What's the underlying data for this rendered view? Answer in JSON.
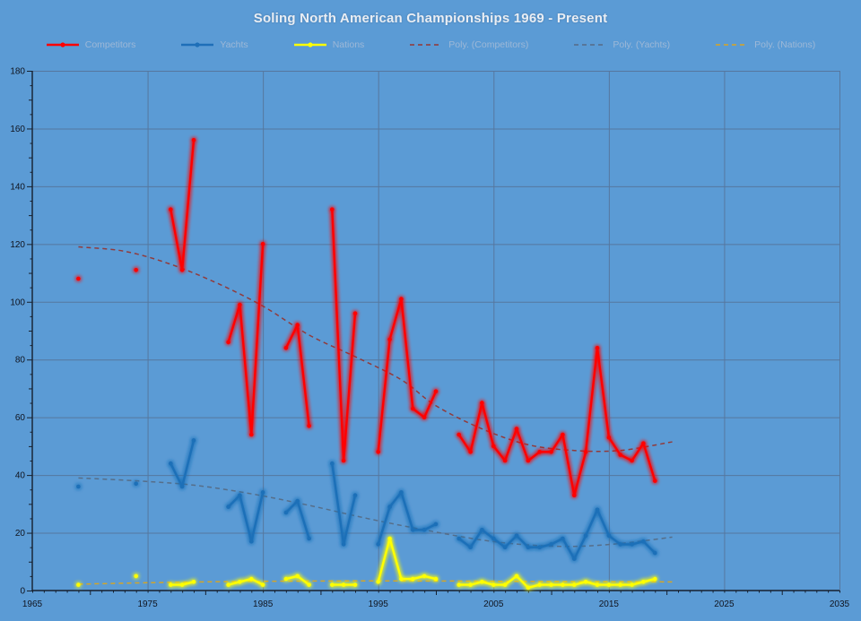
{
  "title": "Soling North American Championships 1969 - Present",
  "colors": {
    "background": "#5b9bd5",
    "gridline": "#56779e",
    "axis": "#16202e",
    "tick_label": "#10141f",
    "title_text": "#e9eef4",
    "legend_text": "#9db8d7",
    "competitors": "#ff0000",
    "yachts": "#1e6fb8",
    "nations": "#ffff00",
    "poly_competitors": "#943634",
    "poly_yachts": "#566b85",
    "poly_nations": "#d9a520"
  },
  "legend": {
    "items": [
      {
        "label": "Competitors",
        "style": "solid",
        "color": "#ff0000"
      },
      {
        "label": "Yachts",
        "style": "solid",
        "color": "#1e6fb8"
      },
      {
        "label": "Nations",
        "style": "solid",
        "color": "#ffff00"
      },
      {
        "label": "Poly. (Competitors)",
        "style": "dashed",
        "color": "#943634"
      },
      {
        "label": "Poly. (Yachts)",
        "style": "dashed",
        "color": "#566b85"
      },
      {
        "label": "Poly. (Nations)",
        "style": "dashed",
        "color": "#d9a520"
      }
    ]
  },
  "chart_data": {
    "type": "line",
    "title": "Soling North American Championships 1969 - Present",
    "xlabel": "",
    "ylabel": "",
    "x_axis": {
      "min": 1965,
      "max": 2035,
      "tick_step": 10,
      "minor_step": 1
    },
    "y_axis": {
      "min": 0,
      "max": 180,
      "tick_step": 20,
      "minor_step": 5
    },
    "grid": true,
    "legend_position": "top",
    "note_gap_years": [
      1970,
      1971,
      1972,
      1973,
      1975,
      1976,
      1980,
      1981,
      1986,
      1990,
      1994,
      2001
    ],
    "series": [
      {
        "name": "Competitors",
        "color": "#ff0000",
        "points": [
          [
            1969,
            108
          ],
          [
            1974,
            111
          ],
          [
            1977,
            132
          ],
          [
            1978,
            111
          ],
          [
            1979,
            156
          ],
          [
            1982,
            86
          ],
          [
            1983,
            99
          ],
          [
            1984,
            54
          ],
          [
            1985,
            120
          ],
          [
            1987,
            84
          ],
          [
            1988,
            92
          ],
          [
            1989,
            57
          ],
          [
            1991,
            132
          ],
          [
            1992,
            45
          ],
          [
            1993,
            96
          ],
          [
            1995,
            48
          ],
          [
            1996,
            87
          ],
          [
            1997,
            101
          ],
          [
            1998,
            63
          ],
          [
            1999,
            60
          ],
          [
            2000,
            69
          ],
          [
            2002,
            54
          ],
          [
            2003,
            48
          ],
          [
            2004,
            65
          ],
          [
            2005,
            50
          ],
          [
            2006,
            45
          ],
          [
            2007,
            56
          ],
          [
            2008,
            45
          ],
          [
            2009,
            48
          ],
          [
            2010,
            48
          ],
          [
            2011,
            54
          ],
          [
            2012,
            33
          ],
          [
            2013,
            48
          ],
          [
            2014,
            84
          ],
          [
            2015,
            53
          ],
          [
            2016,
            47
          ],
          [
            2017,
            45
          ],
          [
            2018,
            51
          ],
          [
            2019,
            38
          ]
        ]
      },
      {
        "name": "Yachts",
        "color": "#1e6fb8",
        "points": [
          [
            1969,
            36
          ],
          [
            1974,
            37
          ],
          [
            1977,
            44
          ],
          [
            1978,
            36
          ],
          [
            1979,
            52
          ],
          [
            1982,
            29
          ],
          [
            1983,
            33
          ],
          [
            1984,
            17
          ],
          [
            1985,
            34
          ],
          [
            1987,
            27
          ],
          [
            1988,
            31
          ],
          [
            1989,
            18
          ],
          [
            1991,
            44
          ],
          [
            1992,
            16
          ],
          [
            1993,
            33
          ],
          [
            1995,
            16
          ],
          [
            1996,
            29
          ],
          [
            1997,
            34
          ],
          [
            1998,
            21
          ],
          [
            1999,
            21
          ],
          [
            2000,
            23
          ],
          [
            2002,
            18
          ],
          [
            2003,
            15
          ],
          [
            2004,
            21
          ],
          [
            2005,
            18
          ],
          [
            2006,
            15
          ],
          [
            2007,
            19
          ],
          [
            2008,
            15
          ],
          [
            2009,
            15
          ],
          [
            2010,
            16
          ],
          [
            2011,
            18
          ],
          [
            2012,
            11
          ],
          [
            2013,
            19
          ],
          [
            2014,
            28
          ],
          [
            2015,
            19
          ],
          [
            2016,
            16
          ],
          [
            2017,
            16
          ],
          [
            2018,
            17
          ],
          [
            2019,
            13
          ]
        ]
      },
      {
        "name": "Nations",
        "color": "#ffff00",
        "points": [
          [
            1969,
            2
          ],
          [
            1974,
            5
          ],
          [
            1977,
            2
          ],
          [
            1978,
            2
          ],
          [
            1979,
            3
          ],
          [
            1982,
            2
          ],
          [
            1983,
            3
          ],
          [
            1984,
            4
          ],
          [
            1985,
            2
          ],
          [
            1987,
            4
          ],
          [
            1988,
            5
          ],
          [
            1989,
            2
          ],
          [
            1991,
            2
          ],
          [
            1992,
            2
          ],
          [
            1993,
            2
          ],
          [
            1995,
            3
          ],
          [
            1996,
            18
          ],
          [
            1997,
            4
          ],
          [
            1998,
            4
          ],
          [
            1999,
            5
          ],
          [
            2000,
            4
          ],
          [
            2002,
            2
          ],
          [
            2003,
            2
          ],
          [
            2004,
            3
          ],
          [
            2005,
            2
          ],
          [
            2006,
            2
          ],
          [
            2007,
            5
          ],
          [
            2008,
            1
          ],
          [
            2009,
            2
          ],
          [
            2010,
            2
          ],
          [
            2011,
            2
          ],
          [
            2012,
            2
          ],
          [
            2013,
            3
          ],
          [
            2014,
            2
          ],
          [
            2015,
            2
          ],
          [
            2016,
            2
          ],
          [
            2017,
            2
          ],
          [
            2018,
            3
          ],
          [
            2019,
            4
          ]
        ]
      }
    ],
    "trendlines": [
      {
        "name": "Poly. (Competitors)",
        "color": "#943634",
        "points": [
          [
            1969,
            119
          ],
          [
            1973,
            117.5
          ],
          [
            1977,
            113
          ],
          [
            1981,
            106.5
          ],
          [
            1985,
            98.5
          ],
          [
            1989,
            88.5
          ],
          [
            1993,
            81
          ],
          [
            1997,
            73
          ],
          [
            2000,
            64
          ],
          [
            2004,
            56
          ],
          [
            2008,
            50.5
          ],
          [
            2012,
            48.5
          ],
          [
            2016,
            48.5
          ],
          [
            2020.5,
            51.5
          ]
        ]
      },
      {
        "name": "Poly. (Yachts)",
        "color": "#566b85",
        "points": [
          [
            1969,
            39
          ],
          [
            1974,
            38
          ],
          [
            1979,
            36.5
          ],
          [
            1984,
            33.5
          ],
          [
            1989,
            29.5
          ],
          [
            1994,
            25
          ],
          [
            1999,
            21
          ],
          [
            2004,
            17.5
          ],
          [
            2008,
            15.8
          ],
          [
            2012,
            15.3
          ],
          [
            2016,
            16.3
          ],
          [
            2020.5,
            18.5
          ]
        ]
      },
      {
        "name": "Poly. (Nations)",
        "color": "#d9a520",
        "points": [
          [
            1969,
            2.2
          ],
          [
            1975,
            2.7
          ],
          [
            1982,
            3.1
          ],
          [
            1990,
            3.3
          ],
          [
            2000,
            3.3
          ],
          [
            2010,
            3.1
          ],
          [
            2020.5,
            3.0
          ]
        ]
      }
    ]
  }
}
